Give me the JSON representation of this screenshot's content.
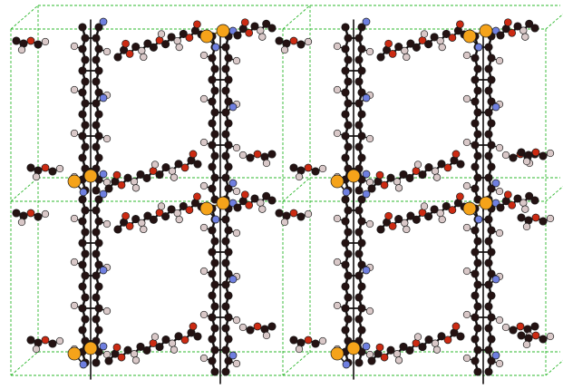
{
  "figure": {
    "kind": "crystal-packing-ball-and-stick",
    "background_color": "#ffffff",
    "unit_cells": {
      "columns": 2,
      "rows": 2
    },
    "colors": {
      "cell_edge": "#2eb82e",
      "bond": "#141010",
      "carbon": "#241212",
      "hydrogen": "#d9c8c8",
      "oxygen": "#cc2a12",
      "nitrogen": "#6f7fe0",
      "metal": "#f5a31a",
      "atom_outline": "#1a1a1a"
    },
    "element_legend": [
      "carbon",
      "hydrogen",
      "oxygen",
      "nitrogen",
      "metal"
    ]
  }
}
